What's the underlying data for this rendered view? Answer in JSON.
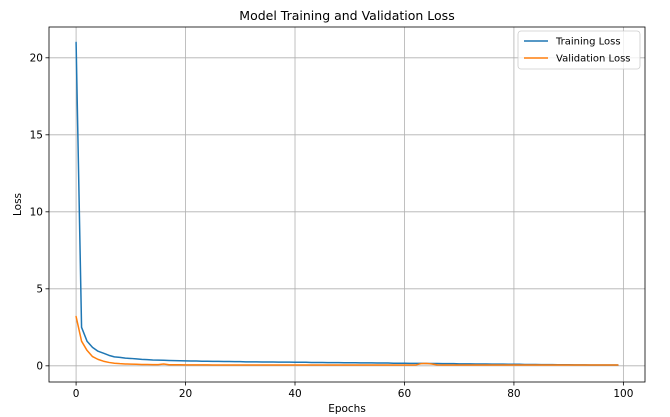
{
  "chart_data": {
    "type": "line",
    "title": "Model Training and Validation Loss",
    "xlabel": "Epochs",
    "ylabel": "Loss",
    "xlim": [
      -4.95,
      103.95
    ],
    "ylim": [
      -1.05,
      22.0
    ],
    "xticks": [
      0,
      20,
      40,
      60,
      80,
      100
    ],
    "yticks": [
      0,
      5,
      10,
      15,
      20
    ],
    "grid": true,
    "legend_position": "top-right",
    "series": [
      {
        "name": "Training Loss",
        "color": "#1f77b4",
        "x": [
          0,
          1,
          2,
          3,
          4,
          5,
          6,
          7,
          8,
          9,
          10,
          11,
          12,
          13,
          14,
          15,
          16,
          17,
          18,
          19,
          20,
          21,
          22,
          23,
          24,
          25,
          26,
          27,
          28,
          29,
          30,
          31,
          32,
          33,
          34,
          35,
          36,
          37,
          38,
          39,
          40,
          41,
          42,
          43,
          44,
          45,
          46,
          47,
          48,
          49,
          50,
          51,
          52,
          53,
          54,
          55,
          56,
          57,
          58,
          59,
          60,
          61,
          62,
          63,
          64,
          65,
          66,
          67,
          68,
          69,
          70,
          71,
          72,
          73,
          74,
          75,
          76,
          77,
          78,
          79,
          80,
          81,
          82,
          83,
          84,
          85,
          86,
          87,
          88,
          89,
          90,
          91,
          92,
          93,
          94,
          95,
          96,
          97,
          98,
          99
        ],
        "y": [
          21.0,
          2.5,
          1.6,
          1.2,
          0.95,
          0.82,
          0.68,
          0.58,
          0.55,
          0.5,
          0.48,
          0.45,
          0.42,
          0.4,
          0.38,
          0.37,
          0.36,
          0.35,
          0.34,
          0.33,
          0.32,
          0.31,
          0.31,
          0.3,
          0.3,
          0.29,
          0.29,
          0.28,
          0.28,
          0.27,
          0.27,
          0.26,
          0.26,
          0.26,
          0.25,
          0.25,
          0.25,
          0.24,
          0.24,
          0.24,
          0.23,
          0.23,
          0.23,
          0.22,
          0.22,
          0.22,
          0.21,
          0.21,
          0.21,
          0.2,
          0.2,
          0.2,
          0.19,
          0.19,
          0.19,
          0.18,
          0.18,
          0.18,
          0.17,
          0.17,
          0.17,
          0.16,
          0.16,
          0.16,
          0.15,
          0.15,
          0.15,
          0.14,
          0.14,
          0.14,
          0.13,
          0.13,
          0.13,
          0.12,
          0.12,
          0.12,
          0.11,
          0.11,
          0.11,
          0.1,
          0.1,
          0.1,
          0.09,
          0.09,
          0.09,
          0.08,
          0.08,
          0.08,
          0.07,
          0.07,
          0.07,
          0.06,
          0.06,
          0.06,
          0.05,
          0.05,
          0.05,
          0.05,
          0.05,
          0.05
        ]
      },
      {
        "name": "Validation Loss",
        "color": "#ff7f0e",
        "x": [
          0,
          1,
          2,
          3,
          4,
          5,
          6,
          7,
          8,
          9,
          10,
          11,
          12,
          13,
          14,
          15,
          16,
          17,
          18,
          19,
          20,
          21,
          22,
          23,
          24,
          25,
          26,
          27,
          28,
          29,
          30,
          31,
          32,
          33,
          34,
          35,
          36,
          37,
          38,
          39,
          40,
          41,
          42,
          43,
          44,
          45,
          46,
          47,
          48,
          49,
          50,
          51,
          52,
          53,
          54,
          55,
          56,
          57,
          58,
          59,
          60,
          61,
          62,
          63,
          64,
          65,
          66,
          67,
          68,
          69,
          70,
          71,
          72,
          73,
          74,
          75,
          76,
          77,
          78,
          79,
          80,
          81,
          82,
          83,
          84,
          85,
          86,
          87,
          88,
          89,
          90,
          91,
          92,
          93,
          94,
          95,
          96,
          97,
          98,
          99
        ],
        "y": [
          3.2,
          1.6,
          1.0,
          0.6,
          0.42,
          0.3,
          0.22,
          0.17,
          0.14,
          0.12,
          0.11,
          0.1,
          0.09,
          0.09,
          0.08,
          0.08,
          0.12,
          0.07,
          0.07,
          0.07,
          0.06,
          0.06,
          0.06,
          0.06,
          0.06,
          0.05,
          0.05,
          0.05,
          0.05,
          0.05,
          0.05,
          0.05,
          0.05,
          0.05,
          0.05,
          0.05,
          0.05,
          0.05,
          0.05,
          0.05,
          0.05,
          0.05,
          0.05,
          0.05,
          0.05,
          0.05,
          0.05,
          0.05,
          0.05,
          0.05,
          0.05,
          0.05,
          0.05,
          0.05,
          0.05,
          0.05,
          0.05,
          0.05,
          0.05,
          0.05,
          0.05,
          0.05,
          0.05,
          0.14,
          0.16,
          0.12,
          0.06,
          0.05,
          0.05,
          0.05,
          0.05,
          0.05,
          0.05,
          0.05,
          0.05,
          0.05,
          0.05,
          0.05,
          0.05,
          0.05,
          0.05,
          0.05,
          0.05,
          0.05,
          0.05,
          0.05,
          0.05,
          0.05,
          0.05,
          0.05,
          0.05,
          0.05,
          0.05,
          0.05,
          0.05,
          0.05,
          0.05,
          0.05,
          0.05,
          0.05
        ]
      }
    ]
  }
}
